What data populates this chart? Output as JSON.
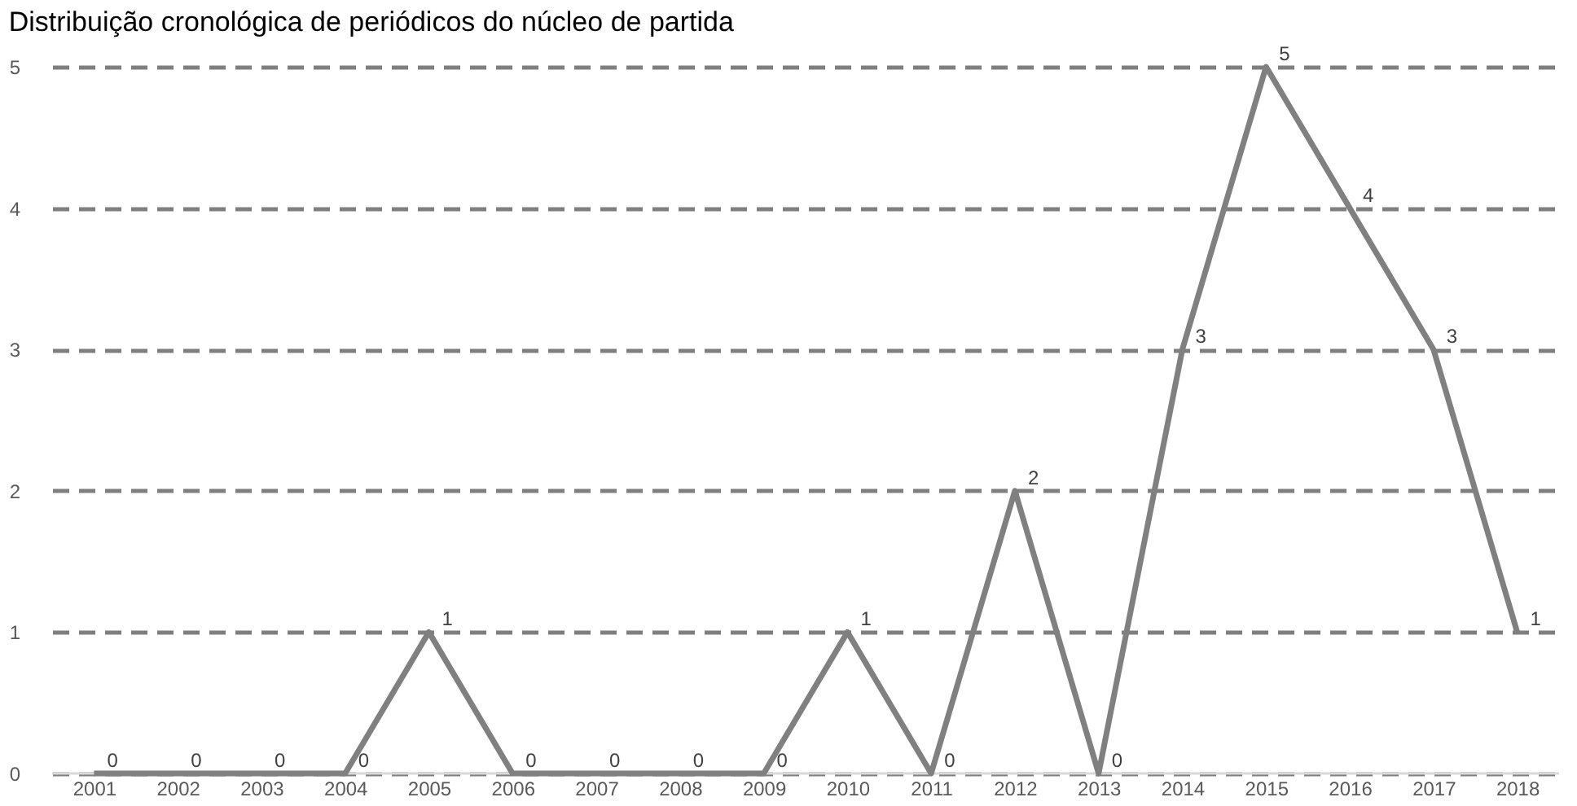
{
  "chart_data": {
    "type": "line",
    "title": "Distribuição cronológica de periódicos do núcleo de partida",
    "categories": [
      "2001",
      "2002",
      "2003",
      "2004",
      "2005",
      "2006",
      "2007",
      "2008",
      "2009",
      "2010",
      "2011",
      "2012",
      "2013",
      "2014",
      "2015",
      "2016",
      "2017",
      "2018"
    ],
    "series": [
      {
        "color": "#808080",
        "values": [
          0,
          0,
          0,
          0,
          1,
          0,
          0,
          0,
          0,
          1,
          0,
          2,
          0,
          3,
          5,
          4,
          3,
          1
        ]
      }
    ],
    "ylim": [
      0,
      5
    ],
    "yticks": [
      0,
      1,
      2,
      3,
      4,
      5
    ],
    "grid": "y",
    "data_labels": true,
    "marker": "none",
    "line_style": "solid"
  }
}
